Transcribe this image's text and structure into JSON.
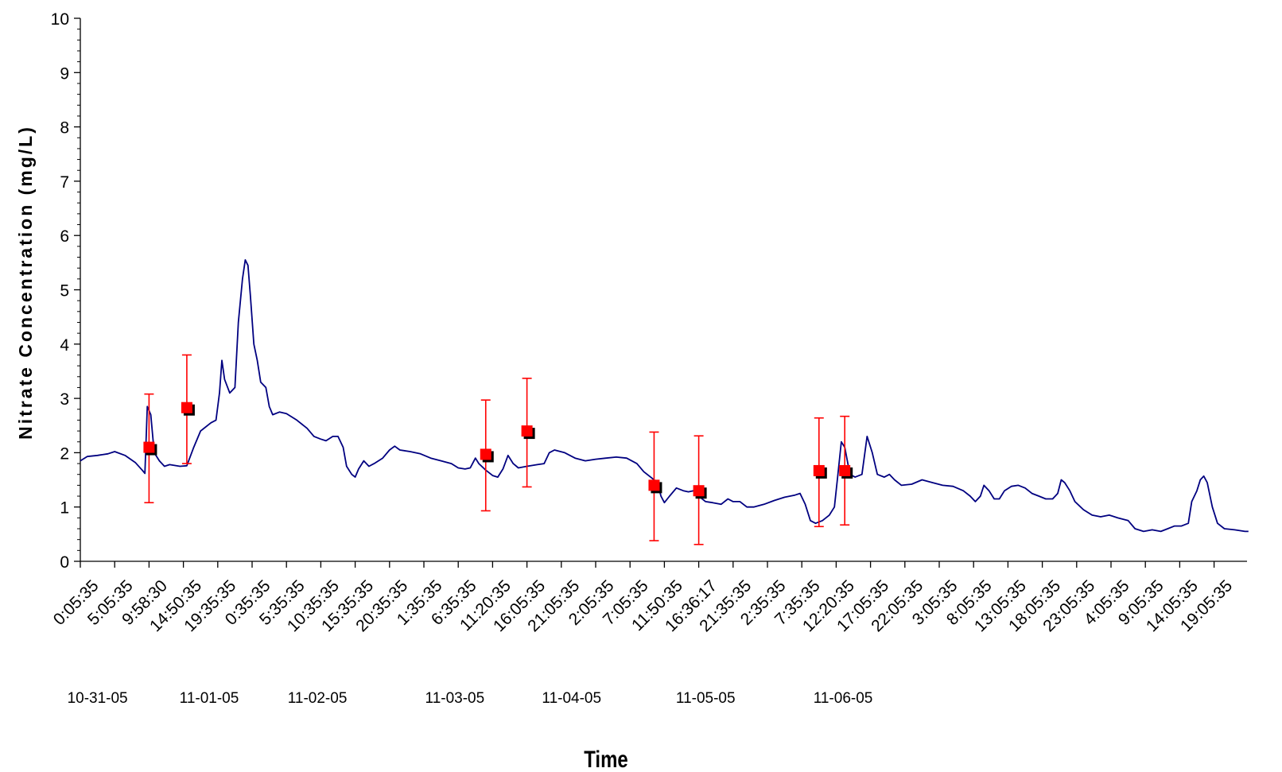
{
  "chart_data": {
    "type": "line",
    "title": "",
    "xlabel": "Time",
    "ylabel": "Nitrate Concentration (mg/L)",
    "ylim": [
      0,
      10
    ],
    "yticks": [
      "0",
      "1",
      "2",
      "3",
      "4",
      "5",
      "6",
      "7",
      "8",
      "9",
      "10"
    ],
    "x_tick_labels": [
      "0:05:35",
      "5:05:35",
      "9:58:30",
      "14:50:35",
      "19:35:35",
      "0:35:35",
      "5:35:35",
      "10:35:35",
      "15:35:35",
      "20:35:35",
      "1:35:35",
      "6:35:35",
      "11:20:35",
      "16:05:35",
      "21:05:35",
      "2:05:35",
      "7:05:35",
      "11:50:35",
      "16:36:17",
      "21:35:35",
      "2:35:35",
      "7:35:35",
      "12:20:35",
      "17:05:35",
      "22:05:35",
      "3:05:35",
      "8:05:35",
      "13:05:35",
      "18:05:35",
      "23:05:35",
      "4:05:35",
      "9:05:35",
      "14:05:35",
      "19:05:35"
    ],
    "date_labels": [
      {
        "label": "10-31-05",
        "tick_index": 0.5
      },
      {
        "label": "11-01-05",
        "tick_index": 3.75
      },
      {
        "label": "11-02-05",
        "tick_index": 6.9
      },
      {
        "label": "11-03-05",
        "tick_index": 10.9
      },
      {
        "label": "11-04-05",
        "tick_index": 14.3
      },
      {
        "label": "11-05-05",
        "tick_index": 18.2
      },
      {
        "label": "11-06-05",
        "tick_index": 22.2
      }
    ],
    "series": [
      {
        "kind": "continuous",
        "color": "#000080",
        "points": [
          [
            0,
            1.85
          ],
          [
            0.2,
            1.93
          ],
          [
            0.5,
            1.95
          ],
          [
            0.8,
            1.98
          ],
          [
            1.0,
            2.02
          ],
          [
            1.3,
            1.95
          ],
          [
            1.6,
            1.82
          ],
          [
            1.8,
            1.68
          ],
          [
            1.88,
            1.62
          ],
          [
            1.95,
            2.85
          ],
          [
            2.05,
            2.7
          ],
          [
            2.15,
            2.0
          ],
          [
            2.3,
            1.85
          ],
          [
            2.45,
            1.75
          ],
          [
            2.6,
            1.78
          ],
          [
            2.9,
            1.75
          ],
          [
            3.1,
            1.76
          ],
          [
            3.3,
            2.1
          ],
          [
            3.5,
            2.4
          ],
          [
            3.8,
            2.55
          ],
          [
            3.95,
            2.6
          ],
          [
            4.05,
            3.1
          ],
          [
            4.12,
            3.7
          ],
          [
            4.2,
            3.35
          ],
          [
            4.35,
            3.1
          ],
          [
            4.5,
            3.2
          ],
          [
            4.6,
            4.4
          ],
          [
            4.72,
            5.2
          ],
          [
            4.8,
            5.55
          ],
          [
            4.88,
            5.45
          ],
          [
            4.95,
            4.9
          ],
          [
            5.05,
            4.0
          ],
          [
            5.15,
            3.7
          ],
          [
            5.25,
            3.3
          ],
          [
            5.4,
            3.2
          ],
          [
            5.5,
            2.85
          ],
          [
            5.6,
            2.7
          ],
          [
            5.8,
            2.75
          ],
          [
            6.0,
            2.72
          ],
          [
            6.3,
            2.6
          ],
          [
            6.6,
            2.45
          ],
          [
            6.8,
            2.3
          ],
          [
            7.0,
            2.25
          ],
          [
            7.15,
            2.22
          ],
          [
            7.35,
            2.3
          ],
          [
            7.5,
            2.3
          ],
          [
            7.65,
            2.1
          ],
          [
            7.75,
            1.75
          ],
          [
            7.9,
            1.6
          ],
          [
            8.0,
            1.55
          ],
          [
            8.1,
            1.7
          ],
          [
            8.25,
            1.85
          ],
          [
            8.4,
            1.75
          ],
          [
            8.55,
            1.8
          ],
          [
            8.8,
            1.9
          ],
          [
            9.0,
            2.05
          ],
          [
            9.15,
            2.12
          ],
          [
            9.3,
            2.05
          ],
          [
            9.6,
            2.02
          ],
          [
            9.9,
            1.98
          ],
          [
            10.2,
            1.9
          ],
          [
            10.5,
            1.85
          ],
          [
            10.8,
            1.8
          ],
          [
            11.0,
            1.72
          ],
          [
            11.2,
            1.7
          ],
          [
            11.35,
            1.72
          ],
          [
            11.5,
            1.9
          ],
          [
            11.6,
            1.8
          ],
          [
            11.8,
            1.68
          ],
          [
            12.0,
            1.58
          ],
          [
            12.15,
            1.55
          ],
          [
            12.3,
            1.7
          ],
          [
            12.45,
            1.95
          ],
          [
            12.6,
            1.8
          ],
          [
            12.75,
            1.72
          ],
          [
            13.0,
            1.75
          ],
          [
            13.3,
            1.78
          ],
          [
            13.5,
            1.8
          ],
          [
            13.65,
            2.0
          ],
          [
            13.8,
            2.05
          ],
          [
            14.1,
            2.0
          ],
          [
            14.4,
            1.9
          ],
          [
            14.7,
            1.85
          ],
          [
            15.0,
            1.88
          ],
          [
            15.3,
            1.9
          ],
          [
            15.6,
            1.92
          ],
          [
            15.9,
            1.9
          ],
          [
            16.2,
            1.8
          ],
          [
            16.4,
            1.65
          ],
          [
            16.6,
            1.55
          ],
          [
            16.8,
            1.45
          ],
          [
            16.9,
            1.2
          ],
          [
            17.0,
            1.08
          ],
          [
            17.15,
            1.2
          ],
          [
            17.35,
            1.35
          ],
          [
            17.55,
            1.3
          ],
          [
            17.7,
            1.28
          ],
          [
            17.85,
            1.3
          ],
          [
            18.0,
            1.2
          ],
          [
            18.2,
            1.1
          ],
          [
            18.4,
            1.08
          ],
          [
            18.65,
            1.05
          ],
          [
            18.85,
            1.15
          ],
          [
            19.0,
            1.1
          ],
          [
            19.2,
            1.1
          ],
          [
            19.4,
            1.0
          ],
          [
            19.6,
            1.0
          ],
          [
            19.9,
            1.05
          ],
          [
            20.2,
            1.12
          ],
          [
            20.5,
            1.18
          ],
          [
            20.8,
            1.22
          ],
          [
            20.95,
            1.25
          ],
          [
            21.1,
            1.05
          ],
          [
            21.25,
            0.75
          ],
          [
            21.4,
            0.7
          ],
          [
            21.6,
            0.75
          ],
          [
            21.8,
            0.85
          ],
          [
            21.95,
            1.0
          ],
          [
            22.05,
            1.6
          ],
          [
            22.15,
            2.2
          ],
          [
            22.25,
            2.1
          ],
          [
            22.4,
            1.6
          ],
          [
            22.55,
            1.55
          ],
          [
            22.75,
            1.6
          ],
          [
            22.9,
            2.3
          ],
          [
            23.05,
            2.0
          ],
          [
            23.2,
            1.6
          ],
          [
            23.4,
            1.55
          ],
          [
            23.55,
            1.6
          ],
          [
            23.7,
            1.5
          ],
          [
            23.9,
            1.4
          ],
          [
            24.2,
            1.42
          ],
          [
            24.5,
            1.5
          ],
          [
            24.8,
            1.45
          ],
          [
            25.1,
            1.4
          ],
          [
            25.4,
            1.38
          ],
          [
            25.7,
            1.3
          ],
          [
            25.9,
            1.2
          ],
          [
            26.05,
            1.1
          ],
          [
            26.2,
            1.2
          ],
          [
            26.3,
            1.4
          ],
          [
            26.45,
            1.3
          ],
          [
            26.6,
            1.15
          ],
          [
            26.75,
            1.15
          ],
          [
            26.9,
            1.3
          ],
          [
            27.1,
            1.38
          ],
          [
            27.3,
            1.4
          ],
          [
            27.5,
            1.35
          ],
          [
            27.7,
            1.25
          ],
          [
            27.9,
            1.2
          ],
          [
            28.1,
            1.15
          ],
          [
            28.3,
            1.15
          ],
          [
            28.45,
            1.25
          ],
          [
            28.55,
            1.5
          ],
          [
            28.65,
            1.45
          ],
          [
            28.8,
            1.3
          ],
          [
            28.95,
            1.1
          ],
          [
            29.2,
            0.95
          ],
          [
            29.45,
            0.85
          ],
          [
            29.7,
            0.82
          ],
          [
            29.95,
            0.85
          ],
          [
            30.2,
            0.8
          ],
          [
            30.5,
            0.75
          ],
          [
            30.7,
            0.6
          ],
          [
            30.95,
            0.55
          ],
          [
            31.2,
            0.58
          ],
          [
            31.45,
            0.55
          ],
          [
            31.65,
            0.6
          ],
          [
            31.85,
            0.65
          ],
          [
            32.05,
            0.65
          ],
          [
            32.25,
            0.7
          ],
          [
            32.35,
            1.1
          ],
          [
            32.5,
            1.3
          ],
          [
            32.6,
            1.5
          ],
          [
            32.7,
            1.57
          ],
          [
            32.8,
            1.45
          ],
          [
            32.95,
            1.0
          ],
          [
            33.1,
            0.7
          ],
          [
            33.3,
            0.6
          ],
          [
            33.6,
            0.58
          ],
          [
            33.9,
            0.55
          ],
          [
            34.0,
            0.55
          ]
        ]
      },
      {
        "kind": "sampled_with_error",
        "color": "#ff0000",
        "points": [
          {
            "x": 2.0,
            "y": 2.1,
            "err_low": 1.08,
            "err_high": 3.08
          },
          {
            "x": 3.1,
            "y": 2.83,
            "err_low": 1.8,
            "err_high": 3.8
          },
          {
            "x": 11.8,
            "y": 1.97,
            "err_low": 0.93,
            "err_high": 2.97
          },
          {
            "x": 13.0,
            "y": 2.4,
            "err_low": 1.37,
            "err_high": 3.37
          },
          {
            "x": 16.7,
            "y": 1.4,
            "err_low": 0.38,
            "err_high": 2.38
          },
          {
            "x": 18.0,
            "y": 1.3,
            "err_low": 0.31,
            "err_high": 2.31
          },
          {
            "x": 21.5,
            "y": 1.67,
            "err_low": 0.64,
            "err_high": 2.64
          },
          {
            "x": 22.25,
            "y": 1.67,
            "err_low": 0.67,
            "err_high": 2.67
          }
        ]
      }
    ],
    "grid": false,
    "legend": "none"
  }
}
